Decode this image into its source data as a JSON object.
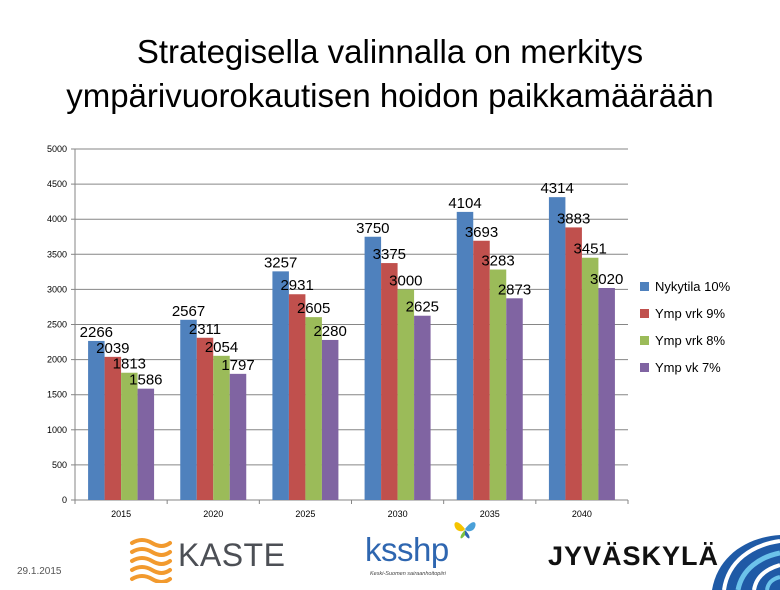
{
  "title_lines": [
    "Strategisella valinnalla on merkitys",
    "ympärivuorokautisen hoidon paikkamäärään"
  ],
  "footer": {
    "date": "29.1.2015",
    "logos": {
      "kaste": "KASTE",
      "ksshp": "ksshp",
      "ksshp_tagline": "Keski-Suomen sairaanhoitopiiri",
      "jyvaskyla": "JYVÄSKYLÄ"
    }
  },
  "colors": {
    "series": [
      "#4f81bd",
      "#c0504d",
      "#9bbb59",
      "#8064a2"
    ],
    "grid": "#868686",
    "butterfly": [
      "#f5c400",
      "#4aa0d8"
    ],
    "kaste_orange": "#f29a2e",
    "jkl_blue": "#1f5aa6"
  },
  "chart_data": {
    "type": "bar",
    "categories": [
      "2015",
      "2020",
      "2025",
      "2030",
      "2035",
      "2040"
    ],
    "ylim": [
      0,
      5000
    ],
    "yticks": [
      0,
      500,
      1000,
      1500,
      2000,
      2500,
      3000,
      3500,
      4000,
      4500,
      5000
    ],
    "grid": true,
    "legend_position": "right",
    "series": [
      {
        "name": "Nykytila 10%",
        "values": [
          2266,
          2567,
          3257,
          3750,
          4104,
          4314
        ]
      },
      {
        "name": "Ymp vrk 9%",
        "values": [
          2039,
          2311,
          2931,
          3375,
          3693,
          3883
        ]
      },
      {
        "name": "Ymp vrk 8%",
        "values": [
          1813,
          2054,
          2605,
          3000,
          3283,
          3451
        ]
      },
      {
        "name": "Ymp vk 7%",
        "values": [
          1586,
          1797,
          2280,
          2625,
          2873,
          3020
        ]
      }
    ]
  }
}
